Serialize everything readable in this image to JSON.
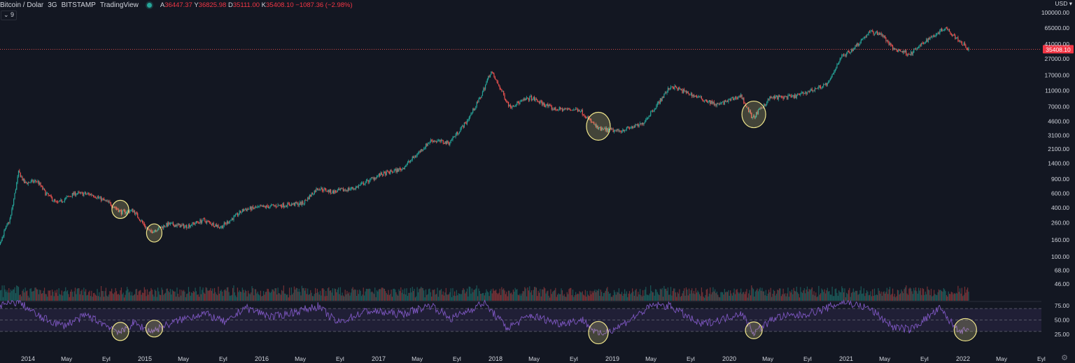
{
  "header": {
    "symbol": "Bitcoin / Dolar",
    "interval": "3G",
    "exchange": "BITSTAMP",
    "source": "TradingView",
    "ohlc": {
      "a_label": "A",
      "a_value": "36447.37",
      "y_label": "Y",
      "y_value": "36825.98",
      "d_label": "D",
      "d_value": "35111.00",
      "k_label": "K",
      "k_value": "35408.10",
      "change": "−1087.36 (−2.98%)"
    },
    "indicator_toggle": "9"
  },
  "currency": "USD",
  "colors": {
    "background": "#131722",
    "up": "#26a69a",
    "down": "#ef5350",
    "rsi": "#7e57c2",
    "highlight": "#f0e68c",
    "price_label": "#f23645"
  },
  "chart_data": [
    {
      "type": "candlestick",
      "title": "",
      "scale": "log",
      "last_price": 35408.1,
      "last_price_label": "35408.10",
      "y_ticks": [
        100000,
        65000,
        41000,
        27000,
        17000,
        11000,
        7000,
        4600,
        3100,
        2100,
        1400,
        900,
        600,
        400,
        260,
        160,
        100,
        68,
        46
      ],
      "y_tick_labels": [
        "100000.00",
        "65000.00",
        "41000.00",
        "27000.00",
        "17000.00",
        "11000.00",
        "7000.00",
        "4600.00",
        "3100.00",
        "2100.00",
        "1400.00",
        "900.00",
        "600.00",
        "400.00",
        "260.00",
        "160.00",
        "100.00",
        "68.00",
        "46.00"
      ],
      "price_path": [
        {
          "x": 2013.5,
          "y": 115
        },
        {
          "x": 2013.62,
          "y": 120
        },
        {
          "x": 2013.75,
          "y": 140
        },
        {
          "x": 2013.85,
          "y": 300
        },
        {
          "x": 2013.92,
          "y": 1100
        },
        {
          "x": 2013.97,
          "y": 800
        },
        {
          "x": 2014.08,
          "y": 850
        },
        {
          "x": 2014.15,
          "y": 600
        },
        {
          "x": 2014.25,
          "y": 450
        },
        {
          "x": 2014.4,
          "y": 600
        },
        {
          "x": 2014.55,
          "y": 580
        },
        {
          "x": 2014.7,
          "y": 450
        },
        {
          "x": 2014.8,
          "y": 350
        },
        {
          "x": 2014.9,
          "y": 370
        },
        {
          "x": 2015.04,
          "y": 200
        },
        {
          "x": 2015.2,
          "y": 250
        },
        {
          "x": 2015.35,
          "y": 235
        },
        {
          "x": 2015.5,
          "y": 280
        },
        {
          "x": 2015.65,
          "y": 230
        },
        {
          "x": 2015.85,
          "y": 380
        },
        {
          "x": 2016.1,
          "y": 420
        },
        {
          "x": 2016.35,
          "y": 450
        },
        {
          "x": 2016.48,
          "y": 700
        },
        {
          "x": 2016.6,
          "y": 620
        },
        {
          "x": 2016.8,
          "y": 700
        },
        {
          "x": 2017.0,
          "y": 1000
        },
        {
          "x": 2017.2,
          "y": 1200
        },
        {
          "x": 2017.45,
          "y": 2700
        },
        {
          "x": 2017.6,
          "y": 2500
        },
        {
          "x": 2017.75,
          "y": 4500
        },
        {
          "x": 2017.87,
          "y": 9000
        },
        {
          "x": 2017.96,
          "y": 19000
        },
        {
          "x": 2018.05,
          "y": 11000
        },
        {
          "x": 2018.12,
          "y": 7000
        },
        {
          "x": 2018.3,
          "y": 9000
        },
        {
          "x": 2018.5,
          "y": 6500
        },
        {
          "x": 2018.72,
          "y": 6400
        },
        {
          "x": 2018.88,
          "y": 3700
        },
        {
          "x": 2019.05,
          "y": 3500
        },
        {
          "x": 2019.25,
          "y": 4200
        },
        {
          "x": 2019.4,
          "y": 8000
        },
        {
          "x": 2019.5,
          "y": 12500
        },
        {
          "x": 2019.7,
          "y": 9500
        },
        {
          "x": 2019.9,
          "y": 7300
        },
        {
          "x": 2020.1,
          "y": 9500
        },
        {
          "x": 2020.2,
          "y": 5000
        },
        {
          "x": 2020.35,
          "y": 9000
        },
        {
          "x": 2020.55,
          "y": 9200
        },
        {
          "x": 2020.7,
          "y": 11000
        },
        {
          "x": 2020.85,
          "y": 13500
        },
        {
          "x": 2020.95,
          "y": 28000
        },
        {
          "x": 2021.05,
          "y": 35000
        },
        {
          "x": 2021.2,
          "y": 58000
        },
        {
          "x": 2021.3,
          "y": 55000
        },
        {
          "x": 2021.4,
          "y": 36000
        },
        {
          "x": 2021.55,
          "y": 31000
        },
        {
          "x": 2021.7,
          "y": 47000
        },
        {
          "x": 2021.85,
          "y": 66000
        },
        {
          "x": 2021.95,
          "y": 48000
        },
        {
          "x": 2022.05,
          "y": 35408
        }
      ],
      "highlights": [
        {
          "x": 2014.79,
          "y": 380
        },
        {
          "x": 2015.08,
          "y": 195
        },
        {
          "x": 2018.88,
          "y": 4000
        },
        {
          "x": 2020.21,
          "y": 5600
        }
      ]
    },
    {
      "type": "line",
      "title": "",
      "ylim": [
        15,
        85
      ],
      "y_ticks": [
        75,
        50,
        25
      ],
      "y_tick_labels": [
        "75.00",
        "50.00",
        "25.00"
      ],
      "band": [
        30,
        70
      ],
      "rsi_points": [
        {
          "x": 2013.5,
          "y": 62
        },
        {
          "x": 2013.92,
          "y": 82
        },
        {
          "x": 2014.1,
          "y": 55
        },
        {
          "x": 2014.3,
          "y": 40
        },
        {
          "x": 2014.5,
          "y": 58
        },
        {
          "x": 2014.7,
          "y": 38
        },
        {
          "x": 2014.8,
          "y": 28
        },
        {
          "x": 2014.9,
          "y": 45
        },
        {
          "x": 2015.05,
          "y": 30
        },
        {
          "x": 2015.3,
          "y": 50
        },
        {
          "x": 2015.5,
          "y": 62
        },
        {
          "x": 2015.7,
          "y": 45
        },
        {
          "x": 2015.85,
          "y": 72
        },
        {
          "x": 2016.1,
          "y": 55
        },
        {
          "x": 2016.48,
          "y": 74
        },
        {
          "x": 2016.65,
          "y": 45
        },
        {
          "x": 2016.9,
          "y": 66
        },
        {
          "x": 2017.2,
          "y": 60
        },
        {
          "x": 2017.45,
          "y": 76
        },
        {
          "x": 2017.62,
          "y": 52
        },
        {
          "x": 2017.9,
          "y": 80
        },
        {
          "x": 2018.1,
          "y": 36
        },
        {
          "x": 2018.3,
          "y": 58
        },
        {
          "x": 2018.55,
          "y": 44
        },
        {
          "x": 2018.75,
          "y": 50
        },
        {
          "x": 2018.88,
          "y": 24
        },
        {
          "x": 2019.05,
          "y": 38
        },
        {
          "x": 2019.35,
          "y": 76
        },
        {
          "x": 2019.5,
          "y": 74
        },
        {
          "x": 2019.75,
          "y": 42
        },
        {
          "x": 2019.95,
          "y": 52
        },
        {
          "x": 2020.1,
          "y": 63
        },
        {
          "x": 2020.21,
          "y": 28
        },
        {
          "x": 2020.4,
          "y": 55
        },
        {
          "x": 2020.6,
          "y": 58
        },
        {
          "x": 2020.8,
          "y": 68
        },
        {
          "x": 2020.98,
          "y": 82
        },
        {
          "x": 2021.2,
          "y": 70
        },
        {
          "x": 2021.4,
          "y": 38
        },
        {
          "x": 2021.55,
          "y": 33
        },
        {
          "x": 2021.8,
          "y": 70
        },
        {
          "x": 2021.92,
          "y": 40
        },
        {
          "x": 2022.0,
          "y": 30
        },
        {
          "x": 2022.05,
          "y": 32
        }
      ],
      "highlights": [
        {
          "x": 2014.79,
          "y": 30
        },
        {
          "x": 2015.08,
          "y": 35
        },
        {
          "x": 2018.88,
          "y": 28
        },
        {
          "x": 2020.21,
          "y": 32
        },
        {
          "x": 2022.02,
          "y": 33
        }
      ]
    }
  ],
  "x_axis": {
    "labels": [
      {
        "x": 2014.0,
        "label": "2014"
      },
      {
        "x": 2014.33,
        "label": "May"
      },
      {
        "x": 2014.67,
        "label": "Eyl"
      },
      {
        "x": 2015.0,
        "label": "2015"
      },
      {
        "x": 2015.33,
        "label": "May"
      },
      {
        "x": 2015.67,
        "label": "Eyl"
      },
      {
        "x": 2016.0,
        "label": "2016"
      },
      {
        "x": 2016.33,
        "label": "May"
      },
      {
        "x": 2016.67,
        "label": "Eyl"
      },
      {
        "x": 2017.0,
        "label": "2017"
      },
      {
        "x": 2017.33,
        "label": "May"
      },
      {
        "x": 2017.67,
        "label": "Eyl"
      },
      {
        "x": 2018.0,
        "label": "2018"
      },
      {
        "x": 2018.33,
        "label": "May"
      },
      {
        "x": 2018.67,
        "label": "Eyl"
      },
      {
        "x": 2019.0,
        "label": "2019"
      },
      {
        "x": 2019.33,
        "label": "May"
      },
      {
        "x": 2019.67,
        "label": "Eyl"
      },
      {
        "x": 2020.0,
        "label": "2020"
      },
      {
        "x": 2020.33,
        "label": "May"
      },
      {
        "x": 2020.67,
        "label": "Eyl"
      },
      {
        "x": 2021.0,
        "label": "2021"
      },
      {
        "x": 2021.33,
        "label": "May"
      },
      {
        "x": 2021.67,
        "label": "Eyl"
      },
      {
        "x": 2022.0,
        "label": "2022"
      },
      {
        "x": 2022.33,
        "label": "May"
      },
      {
        "x": 2022.67,
        "label": "Eyl"
      }
    ]
  }
}
